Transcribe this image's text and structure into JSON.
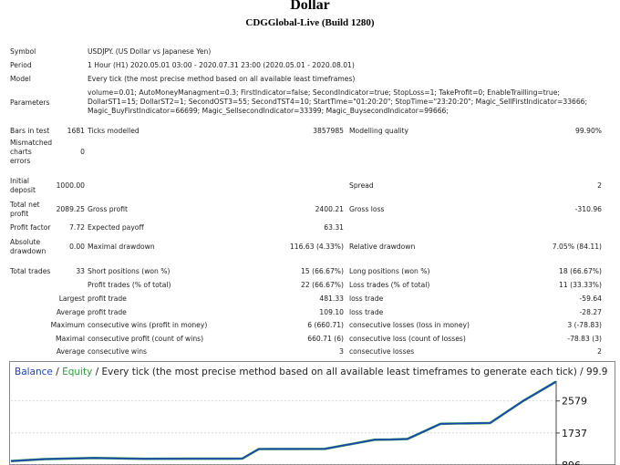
{
  "header": {
    "title": "Dollar",
    "subtitle": "CDGGlobal-Live (Build 1280)"
  },
  "report": {
    "symbol_label": "Symbol",
    "symbol": "USDJPY. (US Dollar vs Japanese Yen)",
    "period_label": "Period",
    "period": "1 Hour (H1) 2020.05.01 03:00 - 2020.07.31 23:00 (2020.05.01 - 2020.08.01)",
    "model_label": "Model",
    "model": "Every tick (the most precise method based on all available least timeframes)",
    "parameters_label": "Parameters",
    "parameters_line1": "volume=0.01; AutoMoneyManagment=0.3; FirstIndicator=false; SecondIndicator=true; StopLoss=1; TakeProfit=0; EnableTrailling=true;",
    "parameters_line2": "DollarST1=15; DollarST2=1; SecondOST3=55; SecondTST4=10; StartTime=\"01:20:20\"; StopTime=\"23:20:20\"; Magic_SellFirstIndicator=33666;",
    "parameters_line3": "Magic_BuyFirstIndicator=66699; Magic_SellsecondIndicator=33399; Magic_BuysecondIndicator=99666;",
    "bars_label": "Bars in test",
    "bars": "1681",
    "ticks_label": "Ticks modelled",
    "ticks": "3857985",
    "quality_label": "Modelling quality",
    "quality": "99.90%",
    "mismatch_label_1": "Mismatched",
    "mismatch_label_2": "charts",
    "mismatch_label_3": "errors",
    "mismatch": "0",
    "deposit_label_1": "Initial",
    "deposit_label_2": "deposit",
    "deposit": "1000.00",
    "spread_label": "Spread",
    "spread": "2",
    "net_label_1": "Total net",
    "net_label_2": "profit",
    "net": "2089.25",
    "gross_profit_label": "Gross profit",
    "gross_profit": "2400.21",
    "gross_loss_label": "Gross loss",
    "gross_loss": "-310.96",
    "pf_label": "Profit factor",
    "pf": "7.72",
    "payoff_label": "Expected payoff",
    "payoff": "63.31",
    "abs_dd_label_1": "Absolute",
    "abs_dd_label_2": "drawdown",
    "abs_dd": "0.00",
    "max_dd_label": "Maximal drawdown",
    "max_dd": "116.63 (4.33%)",
    "rel_dd_label": "Relative drawdown",
    "rel_dd": "7.05% (84.11)",
    "trades_label": "Total trades",
    "trades": "33",
    "short_label": "Short positions (won %)",
    "short": "15 (66.67%)",
    "long_label": "Long positions (won %)",
    "long": "18 (66.67%)",
    "profit_trades_label": "Profit trades (% of total)",
    "profit_trades": "22 (66.67%)",
    "loss_trades_label": "Loss trades (% of total)",
    "loss_trades": "11 (33.33%)",
    "largest_label": "Largest",
    "largest_profit_label": "profit trade",
    "largest_profit": "481.33",
    "largest_loss_label": "loss trade",
    "largest_loss": "-59.64",
    "average_label": "Average",
    "avg_profit_label": "profit trade",
    "avg_profit": "109.10",
    "avg_loss_label": "loss trade",
    "avg_loss": "-28.27",
    "maximum_label": "Maximum",
    "max_wins_label": "consecutive wins (profit in money)",
    "max_wins": "6 (660.71)",
    "max_losses_label": "consecutive losses (loss in money)",
    "max_losses": "3 (-78.83)",
    "maximal_label": "Maximal",
    "maximal_profit_label": "consecutive profit (count of wins)",
    "maximal_profit": "660.71 (6)",
    "maximal_loss_label": "consecutive loss (count of losses)",
    "maximal_loss": "-78.83 (3)",
    "average2_label": "Average",
    "avg_wins_label": "consecutive wins",
    "avg_wins": "3",
    "avg_losses_label": "consecutive losses",
    "avg_losses": "2"
  },
  "chart_data": {
    "type": "line",
    "title_balance": "Balance",
    "title_sep": " / ",
    "title_equity": "Equity",
    "title_rest": " / Every tick (the most precise method based on all available least timeframes to generate each tick) / 99.9",
    "y_ticks": [
      "2579",
      "1737",
      "896"
    ],
    "ylim": [
      896,
      3100
    ],
    "colors": {
      "balance": "#1f3fbf",
      "equity": "#2aa33a",
      "grid": "#c8c8c8",
      "title_balance": "#1f3fbf",
      "title_equity": "#2aa33a"
    },
    "series": [
      {
        "name": "Balance",
        "x": [
          0,
          2,
          5,
          8,
          11,
          14,
          15,
          16,
          19,
          22,
          23,
          24,
          26,
          27,
          29,
          31,
          33
        ],
        "y": [
          1000,
          1050,
          1080,
          1060,
          1062,
          1063,
          1315,
          1318,
          1320,
          1560,
          1565,
          1580,
          1980,
          1985,
          2000,
          2580,
          3089
        ]
      }
    ]
  }
}
